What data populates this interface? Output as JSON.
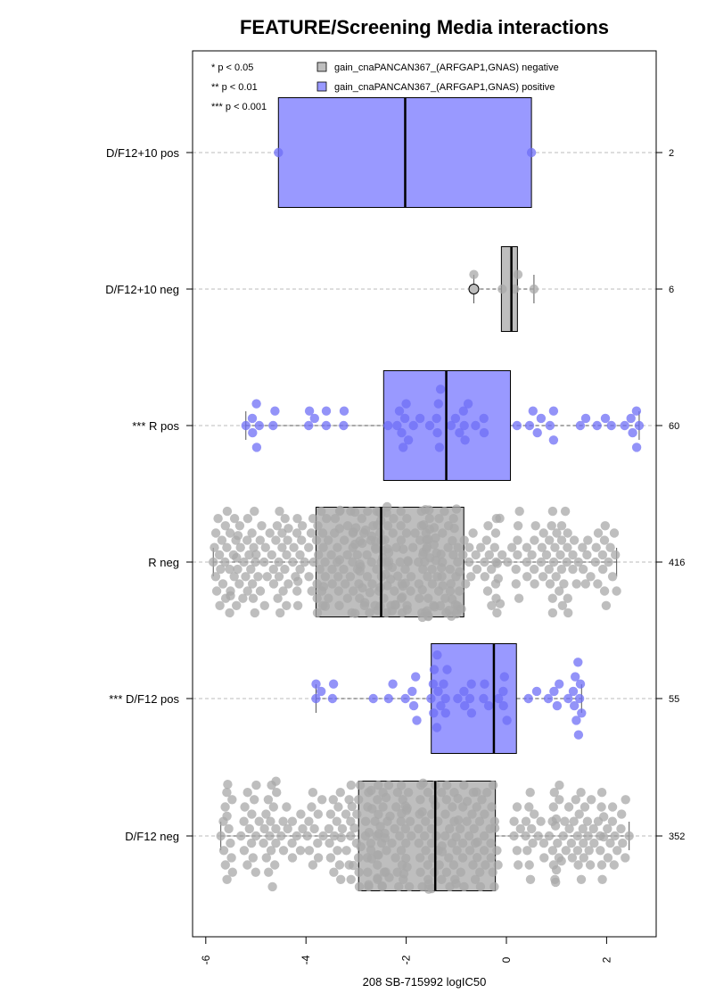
{
  "chart_data": {
    "type": "boxplot-beeswarm",
    "title": "FEATURE/Screening Media interactions",
    "xlabel": "208 SB-715992 logIC50",
    "xlim": [
      -6.2,
      3.0
    ],
    "xticks": [
      -6,
      -4,
      -2,
      0,
      2
    ],
    "xtick_labels": [
      "-6",
      "-4",
      "-2",
      "0",
      "2"
    ],
    "significance_legend": [
      "* p < 0.05",
      "** p < 0.01",
      "*** p < 0.001"
    ],
    "legend": [
      {
        "label": "gain_cnaPANCAN367_(ARFGAP1,GNAS) negative",
        "color": "#bebebe"
      },
      {
        "label": "gain_cnaPANCAN367_(ARFGAP1,GNAS) positive",
        "color": "#9999ff"
      }
    ],
    "colors": {
      "negative": "#bebebe",
      "positive": "#9999ff",
      "neg_point": "#a8a8a8",
      "pos_point": "#6f6ff5"
    },
    "groups": [
      {
        "label": "D/F12+10 pos",
        "n": "2",
        "status": "positive",
        "min": -4.55,
        "q1": -4.55,
        "median": -2.02,
        "q3": 0.5,
        "max": 0.5,
        "outliers": []
      },
      {
        "label": "D/F12+10 neg",
        "n": "6",
        "status": "negative",
        "min": -0.65,
        "q1": -0.1,
        "median": 0.1,
        "q3": 0.22,
        "max": 0.55,
        "outliers": [
          -0.65
        ]
      },
      {
        "label": "*** R pos",
        "n": "60",
        "status": "positive",
        "min": -5.2,
        "q1": -2.45,
        "median": -1.2,
        "q3": 0.08,
        "max": 2.65,
        "outliers": []
      },
      {
        "label": "R neg",
        "n": "416",
        "status": "negative",
        "min": -5.85,
        "q1": -3.8,
        "median": -2.5,
        "q3": -0.85,
        "max": 2.2,
        "outliers": []
      },
      {
        "label": "*** D/F12 pos",
        "n": "55",
        "status": "positive",
        "min": -3.8,
        "q1": -1.5,
        "median": -0.25,
        "q3": 0.2,
        "max": 1.5,
        "outliers": []
      },
      {
        "label": "D/F12 neg",
        "n": "352",
        "status": "negative",
        "min": -5.7,
        "q1": -2.95,
        "median": -1.42,
        "q3": -0.22,
        "max": 2.45,
        "outliers": []
      }
    ]
  }
}
